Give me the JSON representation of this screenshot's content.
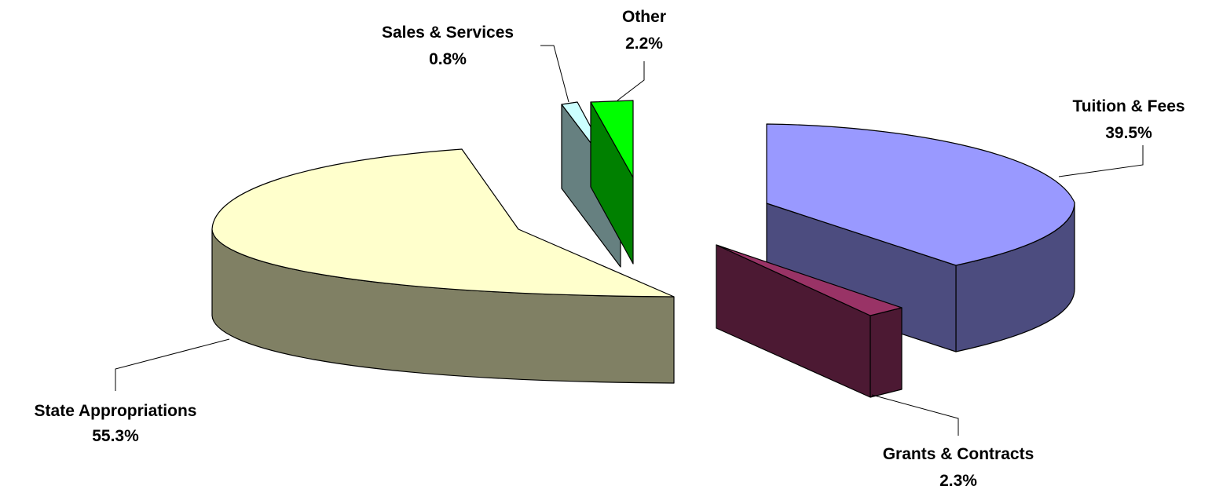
{
  "chart_data": {
    "type": "pie",
    "style": "3d-exploded",
    "categories": [
      "State Appropriations",
      "Tuition & Fees",
      "Grants & Contracts",
      "Sales & Services",
      "Other"
    ],
    "values": [
      55.3,
      39.5,
      2.3,
      0.8,
      2.2
    ],
    "value_labels": [
      "55.3%",
      "39.5%",
      "2.3%",
      "0.8%",
      "2.2%"
    ],
    "colors": {
      "state_appropriations": {
        "top": "#FFFFCC",
        "side": "#808064"
      },
      "tuition_fees": {
        "top": "#9999FF",
        "side": "#4C4C7F"
      },
      "grants_contracts": {
        "top": "#993366",
        "side": "#4C1933"
      },
      "sales_services": {
        "top": "#CCFFFF",
        "side": "#668080"
      },
      "other": {
        "top": "#00FF00",
        "side": "#008000"
      }
    },
    "legend": "none",
    "title": ""
  }
}
